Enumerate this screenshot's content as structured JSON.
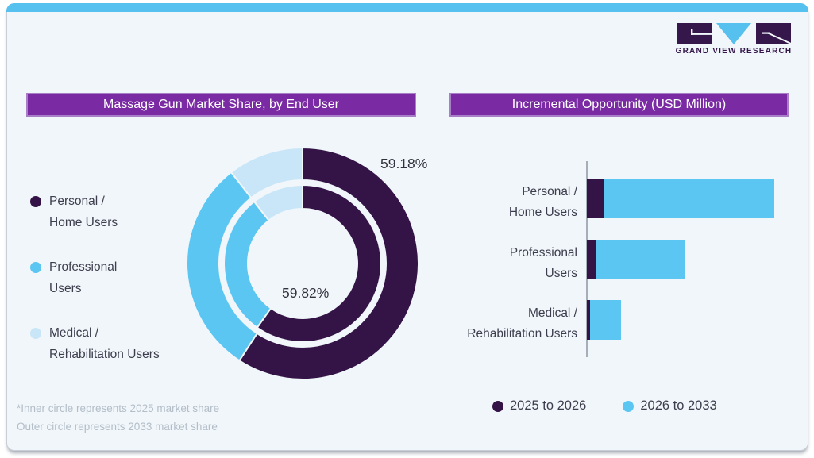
{
  "colors": {
    "card_bg": "#f0f6fa",
    "top_strip": "#56c0ee",
    "card_border": "#c9ced6",
    "header_bar": "#7a2ba3",
    "header_bar_border": "#a87fc6",
    "dark_purple": "#341446",
    "sky_blue": "#5cc6f2",
    "pale_blue": "#c8e6f8",
    "text_dark": "#3d3d4d",
    "footnote_gray": "#b4bec8",
    "axis_gray": "#a6afb7"
  },
  "logo": {
    "name": "Grand View Research",
    "wordmark": "GRAND VIEW RESEARCH"
  },
  "market_share_panel": {
    "title": "Massage Gun Market Share, by End User",
    "legend": [
      {
        "lines": [
          "Personal /",
          "Home Users"
        ]
      },
      {
        "lines": [
          "Professional",
          "Users"
        ]
      },
      {
        "lines": [
          "Medical /",
          "Rehabilitation Users"
        ]
      }
    ],
    "outer_label": "59.18%",
    "inner_label": "59.82%",
    "footnote": [
      "*Inner circle represents 2025 market share",
      "Outer circle represents 2033 market share"
    ]
  },
  "opportunity_panel": {
    "title": "Incremental Opportunity (USD Million)",
    "categories": [
      {
        "lines": [
          "Personal /",
          "Home Users"
        ]
      },
      {
        "lines": [
          "Professional",
          "Users"
        ]
      },
      {
        "lines": [
          "Medical /",
          "Rehabilitation Users"
        ]
      }
    ],
    "legend": [
      {
        "label": "2025 to 2026"
      },
      {
        "label": "2026 to 2033"
      }
    ]
  },
  "chart_data": [
    {
      "type": "donut",
      "title": "Massage Gun Market Share, by End User",
      "categories": [
        "Personal / Home Users",
        "Professional Users",
        "Medical / Rehabilitation Users"
      ],
      "colors": [
        "#341446",
        "#5cc6f2",
        "#c8e6f8"
      ],
      "rings": [
        {
          "name": "inner circle - 2025 market share",
          "values": [
            59.82,
            29.62,
            10.56
          ]
        },
        {
          "name": "outer circle - 2033 market share",
          "values": [
            59.18,
            30.26,
            10.56
          ]
        }
      ],
      "data_labels": {
        "outer_personal": "59.18%",
        "inner_personal": "59.82%"
      },
      "start_angle_deg": 0,
      "direction": "clockwise",
      "legend_position": "left",
      "note": "Only Personal/Home Users shares are labeled on chart; other slice values estimated from arc angles"
    },
    {
      "type": "bar",
      "orientation": "horizontal",
      "stacked": true,
      "title": "Incremental Opportunity (USD Million)",
      "categories": [
        "Personal / Home Users",
        "Professional Users",
        "Medical / Rehabilitation Users"
      ],
      "series": [
        {
          "name": "2025 to 2026",
          "color": "#341446",
          "values": [
            8.9,
            4.7,
            1.7
          ]
        },
        {
          "name": "2026 to 2033",
          "color": "#5cc6f2",
          "values": [
            91.1,
            47.9,
            16.5
          ]
        }
      ],
      "legend_position": "bottom",
      "gridlines": false,
      "note": "No numeric labels shown in chart; values estimated from bar lengths, largest stacked bar normalized to 100"
    }
  ]
}
